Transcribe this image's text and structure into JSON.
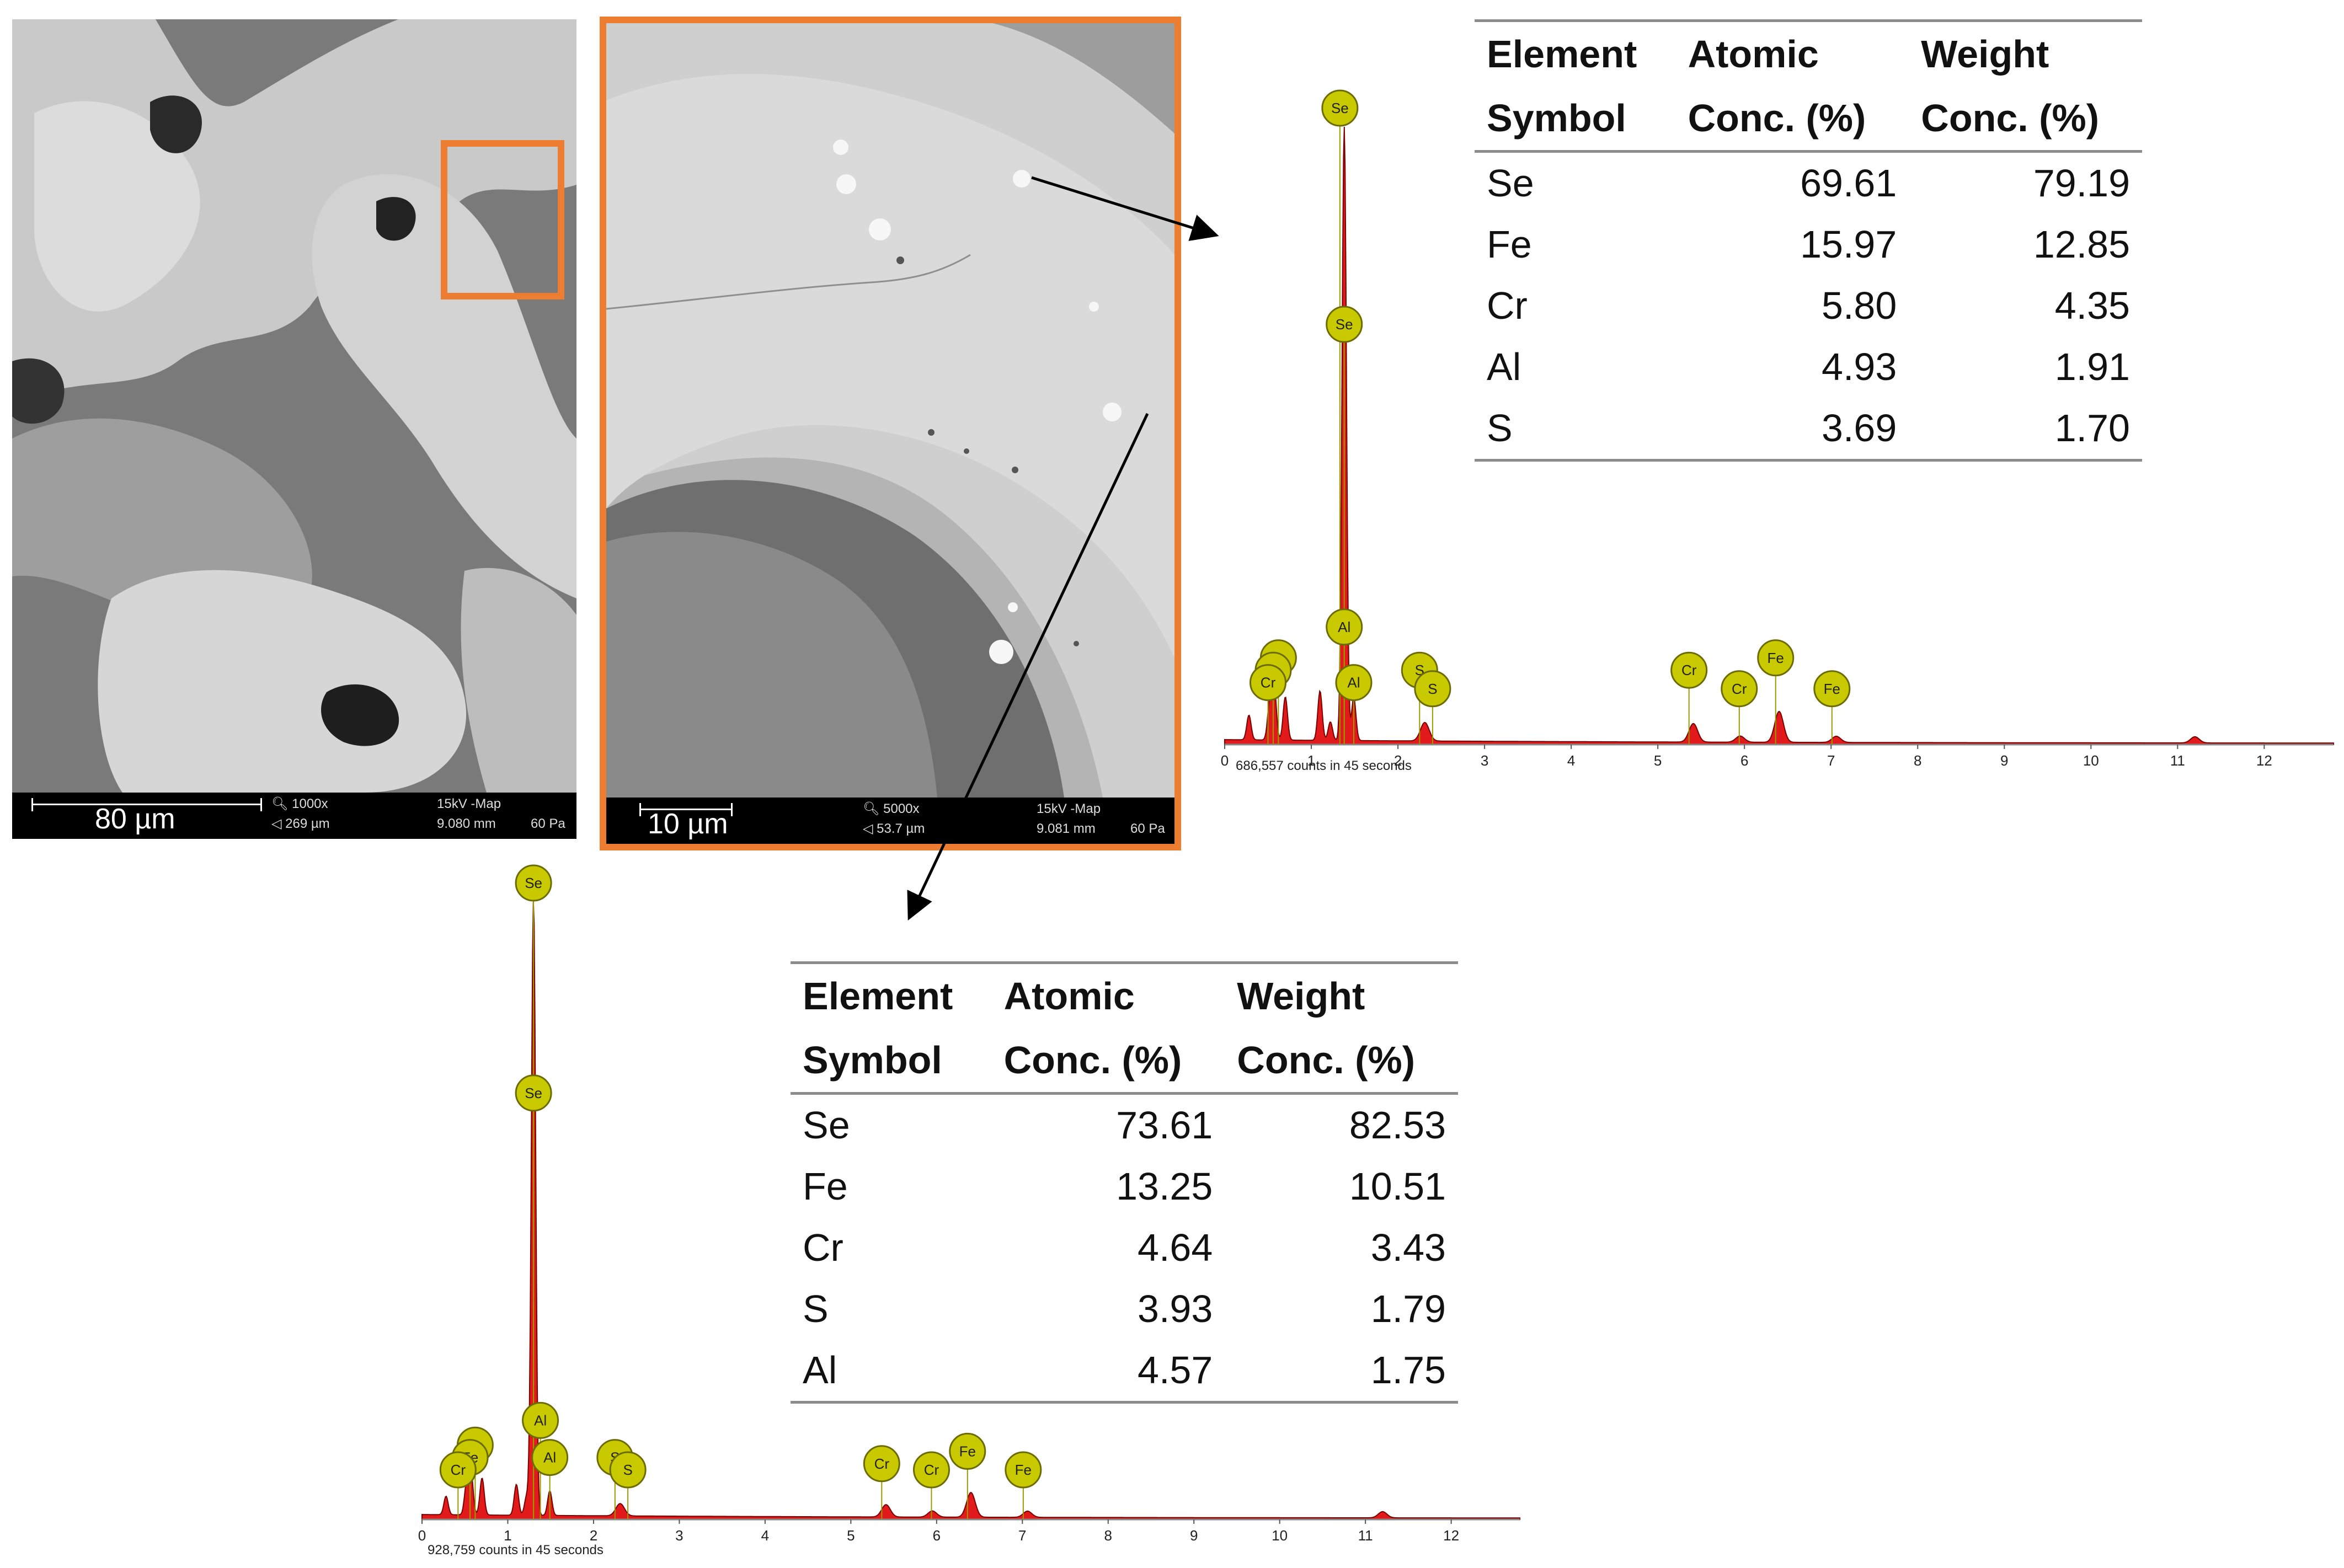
{
  "left_micrograph": {
    "scale_label": "80 µm",
    "magnification": "1000x",
    "field_of_view": "269 µm",
    "mode": "15kV -Map",
    "working_distance": "9.080 mm",
    "pressure": "60 Pa",
    "highlight_color": "#ED7D31"
  },
  "zoom_micrograph": {
    "scale_label": "10 µm",
    "magnification": "5000x",
    "field_of_view": "53.7 µm",
    "mode": "15kV -Map",
    "working_distance": "9.081 mm",
    "pressure": "60 Pa",
    "border_color": "#ED7D31"
  },
  "table_top": {
    "headers": [
      [
        "Element",
        "Symbol"
      ],
      [
        "Atomic",
        "Conc. (%)"
      ],
      [
        "Weight",
        "Conc. (%)"
      ]
    ],
    "rows": [
      [
        "Se",
        "69.61",
        "79.19"
      ],
      [
        "Fe",
        "15.97",
        "12.85"
      ],
      [
        "Cr",
        "5.80",
        "4.35"
      ],
      [
        "Al",
        "4.93",
        "1.91"
      ],
      [
        "S",
        "3.69",
        "1.70"
      ]
    ]
  },
  "table_bottom": {
    "headers": [
      [
        "Element",
        "Symbol"
      ],
      [
        "Atomic",
        "Conc. (%)"
      ],
      [
        "Weight",
        "Conc. (%)"
      ]
    ],
    "rows": [
      [
        "Se",
        "73.61",
        "82.53"
      ],
      [
        "Fe",
        "13.25",
        "10.51"
      ],
      [
        "Cr",
        "4.64",
        "3.43"
      ],
      [
        "S",
        "3.93",
        "1.79"
      ],
      [
        "Al",
        "4.57",
        "1.75"
      ]
    ]
  },
  "chart_data": [
    {
      "type": "area",
      "x_ticks": [
        "0",
        "1",
        "2",
        "3",
        "4",
        "5",
        "6",
        "7",
        "8",
        "9",
        "10",
        "11",
        "12"
      ],
      "xlim": [
        0,
        12.8
      ],
      "ylim": [
        0,
        100
      ],
      "counts_label": "686,557 counts in 45 seconds",
      "fill_color": "#E31A1C",
      "marker_color": "#C9C900",
      "peaks": [
        {
          "x": 0.28,
          "y": 4
        },
        {
          "x": 0.52,
          "y": 6
        },
        {
          "x": 0.57,
          "y": 9
        },
        {
          "x": 0.7,
          "y": 7
        },
        {
          "x": 1.1,
          "y": 8
        },
        {
          "x": 1.22,
          "y": 3
        },
        {
          "x": 1.38,
          "y": 100
        },
        {
          "x": 1.49,
          "y": 7
        },
        {
          "x": 2.31,
          "y": 3
        },
        {
          "x": 5.41,
          "y": 3
        },
        {
          "x": 5.95,
          "y": 1
        },
        {
          "x": 6.4,
          "y": 5
        },
        {
          "x": 7.06,
          "y": 1
        },
        {
          "x": 11.2,
          "y": 1
        }
      ],
      "markers": [
        {
          "label": "Se",
          "x": 1.33,
          "level": 100
        },
        {
          "label": "Se",
          "x": 1.38,
          "level": 65
        },
        {
          "label": "Al",
          "x": 1.38,
          "level": 16
        },
        {
          "label": "Al",
          "x": 1.49,
          "level": 7
        },
        {
          "label": "Fe",
          "x": 0.62,
          "level": 11
        },
        {
          "label": "Fe",
          "x": 0.56,
          "level": 9
        },
        {
          "label": "Cr",
          "x": 0.5,
          "level": 7
        },
        {
          "label": "S",
          "x": 2.25,
          "level": 9
        },
        {
          "label": "S",
          "x": 2.4,
          "level": 6
        },
        {
          "label": "Cr",
          "x": 5.36,
          "level": 9
        },
        {
          "label": "Cr",
          "x": 5.94,
          "level": 6
        },
        {
          "label": "Fe",
          "x": 6.36,
          "level": 11
        },
        {
          "label": "Fe",
          "x": 7.01,
          "level": 6
        }
      ]
    },
    {
      "type": "area",
      "x_ticks": [
        "0",
        "1",
        "2",
        "3",
        "4",
        "5",
        "6",
        "7",
        "8",
        "9",
        "10",
        "11",
        "12"
      ],
      "xlim": [
        0,
        12.8
      ],
      "ylim": [
        0,
        100
      ],
      "counts_label": "928,759 counts in 45 seconds",
      "fill_color": "#E31A1C",
      "marker_color": "#C9C900",
      "peaks": [
        {
          "x": 0.28,
          "y": 3
        },
        {
          "x": 0.52,
          "y": 5
        },
        {
          "x": 0.57,
          "y": 7
        },
        {
          "x": 0.7,
          "y": 6
        },
        {
          "x": 1.1,
          "y": 5
        },
        {
          "x": 1.22,
          "y": 3
        },
        {
          "x": 1.3,
          "y": 100
        },
        {
          "x": 1.49,
          "y": 4
        },
        {
          "x": 2.31,
          "y": 2
        },
        {
          "x": 5.41,
          "y": 2
        },
        {
          "x": 5.95,
          "y": 1
        },
        {
          "x": 6.4,
          "y": 4
        },
        {
          "x": 7.06,
          "y": 1
        },
        {
          "x": 11.2,
          "y": 1
        }
      ],
      "markers": [
        {
          "label": "Se",
          "x": 1.3,
          "level": 100
        },
        {
          "label": "Se",
          "x": 1.3,
          "level": 66
        },
        {
          "label": "Al",
          "x": 1.38,
          "level": 13
        },
        {
          "label": "Al",
          "x": 1.49,
          "level": 7
        },
        {
          "label": "Fe",
          "x": 0.62,
          "level": 9
        },
        {
          "label": "Fe",
          "x": 0.56,
          "level": 7
        },
        {
          "label": "Cr",
          "x": 0.42,
          "level": 5
        },
        {
          "label": "S",
          "x": 2.25,
          "level": 7
        },
        {
          "label": "S",
          "x": 2.4,
          "level": 5
        },
        {
          "label": "Cr",
          "x": 5.36,
          "level": 6
        },
        {
          "label": "Cr",
          "x": 5.94,
          "level": 5
        },
        {
          "label": "Fe",
          "x": 6.36,
          "level": 8
        },
        {
          "label": "Fe",
          "x": 7.01,
          "level": 5
        }
      ]
    }
  ]
}
